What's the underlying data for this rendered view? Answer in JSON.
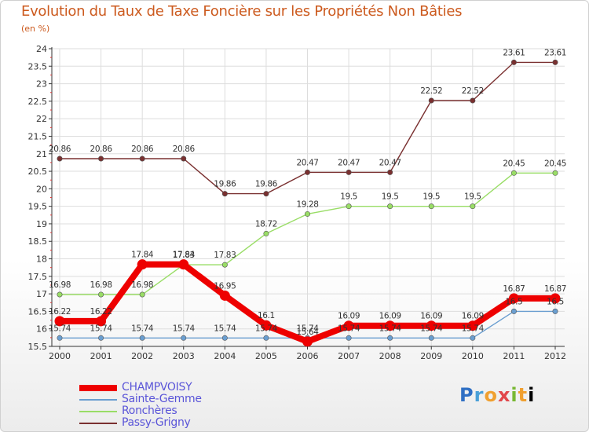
{
  "chart_data": {
    "type": "line",
    "title": "Evolution du Taux de Taxe Foncière sur les Propriétés Non Bâties",
    "subtitle": "(en %)",
    "categories": [
      "2000",
      "2001",
      "2002",
      "2003",
      "2004",
      "2005",
      "2006",
      "2007",
      "2008",
      "2009",
      "2010",
      "2011",
      "2012"
    ],
    "ylim": [
      15.5,
      24
    ],
    "yticks": [
      "15.5",
      "16",
      "16.5",
      "17",
      "17.5",
      "18",
      "18.5",
      "19",
      "19.5",
      "20",
      "20.5",
      "21",
      "21.5",
      "22",
      "22.5",
      "23",
      "23.5",
      "24"
    ],
    "series": [
      {
        "name": "CHAMPVOISY",
        "color": "#ee0000",
        "values": [
          16.22,
          16.22,
          17.84,
          17.84,
          16.95,
          16.1,
          15.64,
          16.09,
          16.09,
          16.09,
          16.09,
          16.87,
          16.87
        ],
        "labels": [
          "16.22",
          "16.22",
          "17.84",
          "17.84",
          "16.95",
          "16.1",
          "15.64",
          "16.09",
          "16.09",
          "16.09",
          "16.09",
          "16.87",
          "16.87"
        ]
      },
      {
        "name": "Sainte-Gemme",
        "color": "#6a9ed0",
        "values": [
          15.74,
          15.74,
          15.74,
          15.74,
          15.74,
          15.74,
          15.74,
          15.74,
          15.74,
          15.74,
          15.74,
          16.5,
          16.5
        ],
        "labels": [
          "15.74",
          "15.74",
          "15.74",
          "15.74",
          "15.74",
          "15.74",
          "15.74",
          "15.74",
          "15.74",
          "15.74",
          "15.74",
          "16.5",
          "16.5"
        ]
      },
      {
        "name": "Ronchères",
        "color": "#99dd66",
        "values": [
          16.98,
          16.98,
          16.98,
          17.83,
          17.83,
          18.72,
          19.28,
          19.5,
          19.5,
          19.5,
          19.5,
          20.45,
          20.45
        ],
        "labels": [
          "16.98",
          "16.98",
          "16.98",
          "17.83",
          "17.83",
          "18.72",
          "19.28",
          "19.5",
          "19.5",
          "19.5",
          "19.5",
          "20.45",
          "20.45"
        ]
      },
      {
        "name": "Passy-Grigny",
        "color": "#7a3030",
        "values": [
          20.86,
          20.86,
          20.86,
          20.86,
          19.86,
          19.86,
          20.47,
          20.47,
          20.47,
          22.52,
          22.52,
          23.61,
          23.61
        ],
        "labels": [
          "20.86",
          "20.86",
          "20.86",
          "20.86",
          "19.86",
          "19.86",
          "20.47",
          "20.47",
          "20.47",
          "22.52",
          "22.52",
          "23.61",
          "23.61"
        ]
      }
    ],
    "grid": true,
    "legend": "bottom-left"
  },
  "legend_items": [
    {
      "label": "CHAMPVOISY",
      "color": "#ee0000"
    },
    {
      "label": "Sainte-Gemme",
      "color": "#6a9ed0"
    },
    {
      "label": "Ronchères",
      "color": "#99dd66"
    },
    {
      "label": "Passy-Grigny",
      "color": "#7a3030"
    }
  ],
  "logo": {
    "letters": [
      "P",
      "r",
      "o",
      "x",
      "i",
      "t",
      "i"
    ],
    "text": "Proxiti"
  }
}
